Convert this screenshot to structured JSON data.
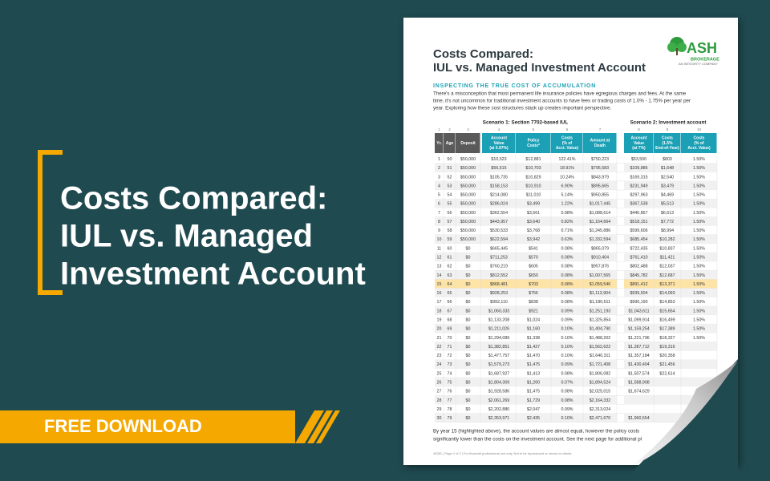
{
  "banner": {
    "title_lines": [
      "Costs Compared:",
      "IUL vs. Managed",
      "Investment Account"
    ],
    "cta": "FREE DOWNLOAD"
  },
  "document": {
    "title_lines": [
      "Costs Compared:",
      "IUL vs. Managed Investment Account"
    ],
    "logo": {
      "name": "ASH",
      "sub": "BROKERAGE",
      "tagline": "AN INTEGRITY COMPANY"
    },
    "heading": "INSPECTING THE TRUE COST OF ACCUMULATION",
    "intro_lines": [
      "There's a misconception that most permanent life insurance policies have egregious charges and fees. At the same",
      "time, it's not uncommon for traditional investment accounts to have fees or trading costs of 1.0% - 1.75% per year per",
      "year. Exploring how these cost structures stack up creates important perspective."
    ],
    "scenarios": [
      "Scenario 1: Section 7702-based IUL",
      "Scenario 2: Investment account"
    ],
    "table": {
      "column_numbers": [
        "1",
        "2",
        "3",
        "4",
        "5",
        "6",
        "7",
        "8",
        "9",
        "10"
      ],
      "headers": [
        [
          "Yr."
        ],
        [
          "Age"
        ],
        [
          "Deposit"
        ],
        [
          "Account",
          "Value",
          "(at 5.97%)"
        ],
        [
          "Policy",
          "Costs*"
        ],
        [
          "Costs",
          "(% of",
          "Acct. Value)"
        ],
        [
          "Amount at",
          "Death"
        ],
        [
          "Account",
          "Value",
          "(at 7%)"
        ],
        [
          "Costs",
          "(1.5%",
          "End-of-Year)"
        ],
        [
          "Costs",
          "(% of",
          "Acct. Value)"
        ]
      ],
      "rows": [
        [
          "1",
          "50",
          "$50,000",
          "$10,523",
          "$12,881",
          "122.41%",
          "$750,223",
          "$53,500",
          "$803",
          "1.50%"
        ],
        [
          "2",
          "51",
          "$50,000",
          "$56,615",
          "$10,703",
          "18.91%",
          "$795,583",
          "$109,886",
          "$1,648",
          "1.50%"
        ],
        [
          "3",
          "52",
          "$50,000",
          "$105,735",
          "$10,829",
          "10.24%",
          "$843,979",
          "$169,315",
          "$2,540",
          "1.50%"
        ],
        [
          "4",
          "53",
          "$50,000",
          "$158,153",
          "$10,910",
          "6.90%",
          "$895,665",
          "$231,949",
          "$3,479",
          "1.50%"
        ],
        [
          "5",
          "54",
          "$50,000",
          "$214,080",
          "$11,010",
          "5.14%",
          "$950,855",
          "$297,963",
          "$4,469",
          "1.50%"
        ],
        [
          "6",
          "55",
          "$50,000",
          "$286,024",
          "$3,499",
          "1.22%",
          "$1,017,445",
          "$367,538",
          "$5,513",
          "1.50%"
        ],
        [
          "7",
          "56",
          "$50,000",
          "$362,554",
          "$3,561",
          "0.98%",
          "$1,088,614",
          "$440,867",
          "$6,613",
          "1.50%"
        ],
        [
          "8",
          "57",
          "$50,000",
          "$443,957",
          "$3,640",
          "0.82%",
          "$1,164,664",
          "$518,151",
          "$7,772",
          "1.50%"
        ],
        [
          "9",
          "58",
          "$50,000",
          "$530,533",
          "$3,768",
          "0.71%",
          "$1,245,886",
          "$599,606",
          "$8,994",
          "1.50%"
        ],
        [
          "10",
          "59",
          "$50,000",
          "$622,594",
          "$3,942",
          "0.63%",
          "$1,332,594",
          "$685,454",
          "$10,282",
          "1.50%"
        ],
        [
          "11",
          "60",
          "$0",
          "$665,445",
          "$541",
          "0.08%",
          "$865,079",
          "$722,435",
          "$10,837",
          "1.50%"
        ],
        [
          "12",
          "61",
          "$0",
          "$711,253",
          "$570",
          "0.08%",
          "$910,404",
          "$761,410",
          "$11,421",
          "1.50%"
        ],
        [
          "13",
          "62",
          "$0",
          "$760,219",
          "$605",
          "0.08%",
          "$957,876",
          "$802,488",
          "$12,037",
          "1.50%"
        ],
        [
          "14",
          "63",
          "$0",
          "$812,552",
          "$650",
          "0.08%",
          "$1,007,565",
          "$845,782",
          "$12,687",
          "1.50%"
        ],
        [
          "15",
          "64",
          "$0",
          "$868,481",
          "$703",
          "0.08%",
          "$1,059,546",
          "$891,412",
          "$13,371",
          "1.50%"
        ],
        [
          "16",
          "65",
          "$0",
          "$928,253",
          "$756",
          "0.08%",
          "$1,113,904",
          "$939,504",
          "$14,093",
          "1.50%"
        ],
        [
          "17",
          "66",
          "$0",
          "$992,110",
          "$838",
          "0.08%",
          "$1,180,611",
          "$990,190",
          "$14,853",
          "1.50%"
        ],
        [
          "18",
          "67",
          "$0",
          "$1,060,333",
          "$921",
          "0.09%",
          "$1,251,193",
          "$1,043,611",
          "$15,654",
          "1.50%"
        ],
        [
          "19",
          "68",
          "$0",
          "$1,133,208",
          "$1,024",
          "0.09%",
          "$1,325,854",
          "$1,099,914",
          "$16,499",
          "1.50%"
        ],
        [
          "20",
          "69",
          "$0",
          "$1,211,026",
          "$1,160",
          "0.10%",
          "$1,404,790",
          "$1,159,254",
          "$17,389",
          "1.50%"
        ],
        [
          "21",
          "70",
          "$0",
          "$1,294,089",
          "$1,338",
          "0.10%",
          "$1,488,202",
          "$1,221,796",
          "$18,327",
          "1.50%"
        ],
        [
          "22",
          "71",
          "$0",
          "$1,382,851",
          "$1,427",
          "0.10%",
          "$1,562,622",
          "$1,287,712",
          "$19,316"
        ],
        [
          "23",
          "72",
          "$0",
          "$1,477,757",
          "$1,470",
          "0.10%",
          "$1,640,311",
          "$1,357,184",
          "$20,358"
        ],
        [
          "24",
          "73",
          "$0",
          "$1,579,273",
          "$1,475",
          "0.09%",
          "$1,721,408",
          "$1,430,404",
          "$21,456"
        ],
        [
          "25",
          "74",
          "$0",
          "$1,687,927",
          "$1,413",
          "0.08%",
          "$1,806,082",
          "$1,507,574",
          "$22,614"
        ],
        [
          "26",
          "75",
          "$0",
          "$1,804,309",
          "$1,260",
          "0.07%",
          "$1,894,524",
          "$1,588,908"
        ],
        [
          "27",
          "76",
          "$0",
          "$1,928,586",
          "$1,475",
          "0.08%",
          "$2,025,015",
          "$1,674,629"
        ],
        [
          "28",
          "77",
          "$0",
          "$2,061,269",
          "$1,729",
          "0.08%",
          "$2,164,332"
        ],
        [
          "29",
          "78",
          "$0",
          "$2,202,880",
          "$2,047",
          "0.09%",
          "$2,313,024"
        ],
        [
          "30",
          "79",
          "$0",
          "$2,353,971",
          "$2,435",
          "0.10%",
          "$2,471,670",
          "$1,960,554"
        ]
      ]
    },
    "closing_lines": [
      "By year 15 (highlighted above), the account values are almost equal, however the policy costs",
      "significantly lower than the costs on the investment account. See the next page for additional pl"
    ],
    "footer": "40051  |  Page 1 of 2  |  For financial professional use only. Not to be reproduced or shown to clients."
  }
}
